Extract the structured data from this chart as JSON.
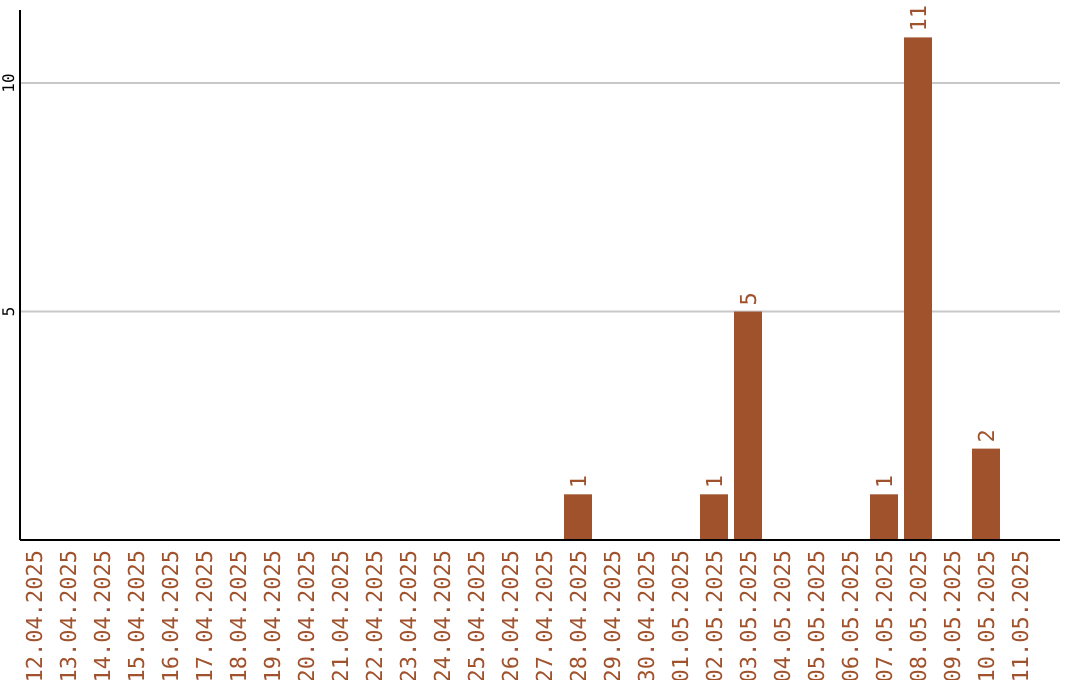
{
  "chart_data": {
    "type": "bar",
    "categories": [
      "12.04.2025",
      "13.04.2025",
      "14.04.2025",
      "15.04.2025",
      "16.04.2025",
      "17.04.2025",
      "18.04.2025",
      "19.04.2025",
      "20.04.2025",
      "21.04.2025",
      "22.04.2025",
      "23.04.2025",
      "24.04.2025",
      "25.04.2025",
      "26.04.2025",
      "27.04.2025",
      "28.04.2025",
      "29.04.2025",
      "30.04.2025",
      "01.05.2025",
      "02.05.2025",
      "03.05.2025",
      "04.05.2025",
      "05.05.2025",
      "06.05.2025",
      "07.05.2025",
      "08.05.2025",
      "09.05.2025",
      "10.05.2025",
      "11.05.2025"
    ],
    "values": [
      0,
      0,
      0,
      0,
      0,
      0,
      0,
      0,
      0,
      0,
      0,
      0,
      0,
      0,
      0,
      0,
      1,
      0,
      0,
      0,
      1,
      5,
      0,
      0,
      0,
      1,
      11,
      0,
      2,
      0
    ],
    "value_labels": [
      null,
      null,
      null,
      null,
      null,
      null,
      null,
      null,
      null,
      null,
      null,
      null,
      null,
      null,
      null,
      null,
      "1",
      null,
      null,
      null,
      "1",
      "5",
      null,
      null,
      null,
      "1",
      "11",
      null,
      "2",
      null
    ],
    "color": "#a0522d",
    "ylim": [
      0,
      11.6
    ],
    "yticks": [
      5,
      10
    ],
    "grid": "y"
  }
}
